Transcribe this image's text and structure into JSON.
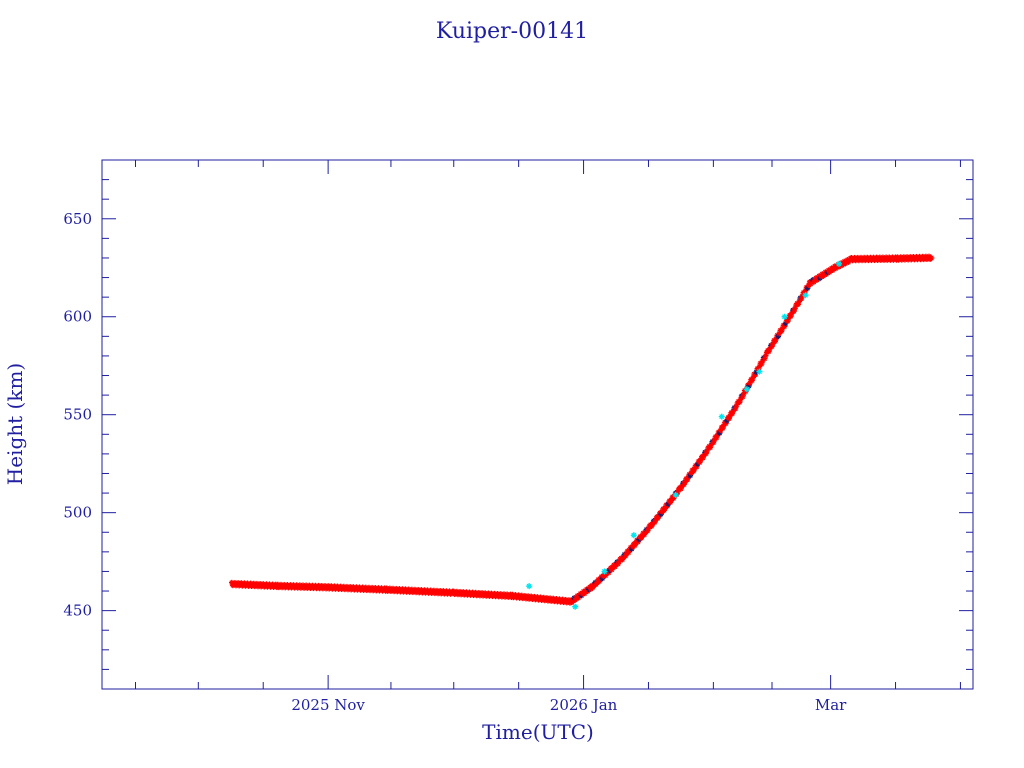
{
  "chart_data": {
    "type": "scatter",
    "title": "Kuiper-00141",
    "xlabel": "Time(UTC)",
    "ylabel": "Height (km)",
    "x_axis": "date",
    "xlim": [
      "2025-09-08",
      "2026-04-04"
    ],
    "ylim": [
      410,
      680
    ],
    "yticks": [
      450,
      500,
      550,
      600,
      650
    ],
    "xticks": [
      {
        "date": "2025-11-01",
        "label": "2025 Nov"
      },
      {
        "date": "2026-01-01",
        "label": "2026 Jan"
      },
      {
        "date": "2026-03-01",
        "label": "Mar"
      }
    ],
    "grid": false,
    "legend": "none",
    "colors": {
      "axis": "#1f1fa0",
      "main": "#ff0000",
      "secondary": "#00e5ee"
    },
    "series": [
      {
        "color": "#ff0000",
        "points": [
          [
            "2025-10-09",
            463.5
          ],
          [
            "2025-10-20",
            462.5
          ],
          [
            "2025-11-01",
            461.8
          ],
          [
            "2025-11-15",
            460.6
          ],
          [
            "2025-12-01",
            459.0
          ],
          [
            "2025-12-15",
            457.4
          ],
          [
            "2025-12-29",
            454.5
          ],
          [
            "2026-01-03",
            462.0
          ],
          [
            "2026-01-10",
            476.0
          ],
          [
            "2026-01-17",
            493.0
          ],
          [
            "2026-01-24",
            512.0
          ],
          [
            "2026-01-31",
            533.0
          ],
          [
            "2026-02-07",
            556.0
          ],
          [
            "2026-02-14",
            582.0
          ],
          [
            "2026-02-21",
            606.0
          ],
          [
            "2026-02-24",
            617.0
          ],
          [
            "2026-03-02",
            625.0
          ],
          [
            "2026-03-06",
            629.3
          ],
          [
            "2026-03-17",
            629.6
          ],
          [
            "2026-03-25",
            630.0
          ]
        ]
      },
      {
        "color": "#00e5ee",
        "points": [
          [
            "2025-12-19",
            462.5
          ],
          [
            "2025-12-30",
            452.0
          ],
          [
            "2026-01-06",
            470.0
          ],
          [
            "2026-01-13",
            488.5
          ],
          [
            "2026-01-23",
            509.0
          ],
          [
            "2026-02-03",
            549.0
          ],
          [
            "2026-02-09",
            563.0
          ],
          [
            "2026-02-12",
            572.0
          ],
          [
            "2026-02-18",
            600.0
          ],
          [
            "2026-02-23",
            611.0
          ],
          [
            "2026-03-03",
            627.0
          ]
        ]
      }
    ]
  }
}
